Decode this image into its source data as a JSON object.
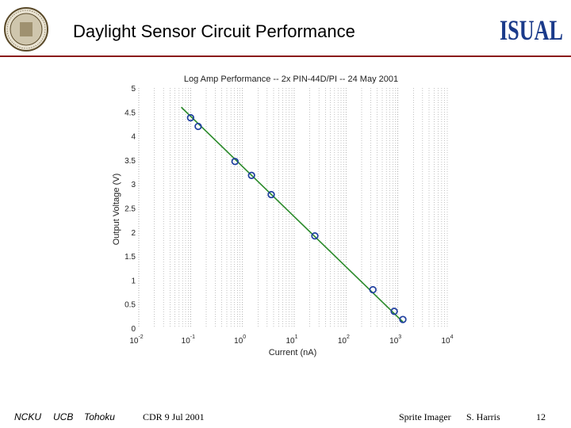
{
  "slide": {
    "title": "Daylight Sensor Circuit Performance",
    "brand_logo_text": "ISUAL",
    "seal_name": "university-seal",
    "page_number": "12"
  },
  "footer": {
    "institutions": [
      "NCKU",
      "UCB",
      "Tohoku"
    ],
    "event": "CDR 9 Jul 2001",
    "project": "Sprite Imager",
    "author": "S. Harris"
  },
  "colors": {
    "rule": "#8a1a1a",
    "line": "#2a8a2a",
    "marker": "#1f3f9f",
    "grid": "#9a9a9a",
    "brand": "#1a3a8a"
  },
  "chart_data": {
    "type": "scatter",
    "title": "Log Amp Performance -- 2x PIN-44D/PI -- 24 May 2001",
    "xlabel": "Current (nA)",
    "ylabel": "Output Voltage (V)",
    "x_scale": "log",
    "xlim": [
      0.01,
      10000
    ],
    "ylim": [
      0,
      5
    ],
    "x_ticks": [
      {
        "base": "10",
        "exp": "-2"
      },
      {
        "base": "10",
        "exp": "-1"
      },
      {
        "base": "10",
        "exp": "0"
      },
      {
        "base": "10",
        "exp": "1"
      },
      {
        "base": "10",
        "exp": "2"
      },
      {
        "base": "10",
        "exp": "3"
      },
      {
        "base": "10",
        "exp": "4"
      }
    ],
    "y_ticks": [
      "0",
      "0.5",
      "1",
      "1.5",
      "2",
      "2.5",
      "3",
      "3.5",
      "4",
      "4.5",
      "5"
    ],
    "grid": "vertical-minor-dotted",
    "series": [
      {
        "marker": "circle",
        "points": [
          {
            "x": 0.1,
            "y": 4.38
          },
          {
            "x": 0.14,
            "y": 4.2
          },
          {
            "x": 0.72,
            "y": 3.47
          },
          {
            "x": 1.5,
            "y": 3.18
          },
          {
            "x": 3.6,
            "y": 2.78
          },
          {
            "x": 25,
            "y": 1.92
          },
          {
            "x": 330,
            "y": 0.8
          },
          {
            "x": 850,
            "y": 0.35
          },
          {
            "x": 1250,
            "y": 0.18
          }
        ]
      },
      {
        "type": "line",
        "points": [
          {
            "x": 0.066,
            "y": 4.6
          },
          {
            "x": 1250,
            "y": 0.13
          }
        ]
      }
    ]
  }
}
